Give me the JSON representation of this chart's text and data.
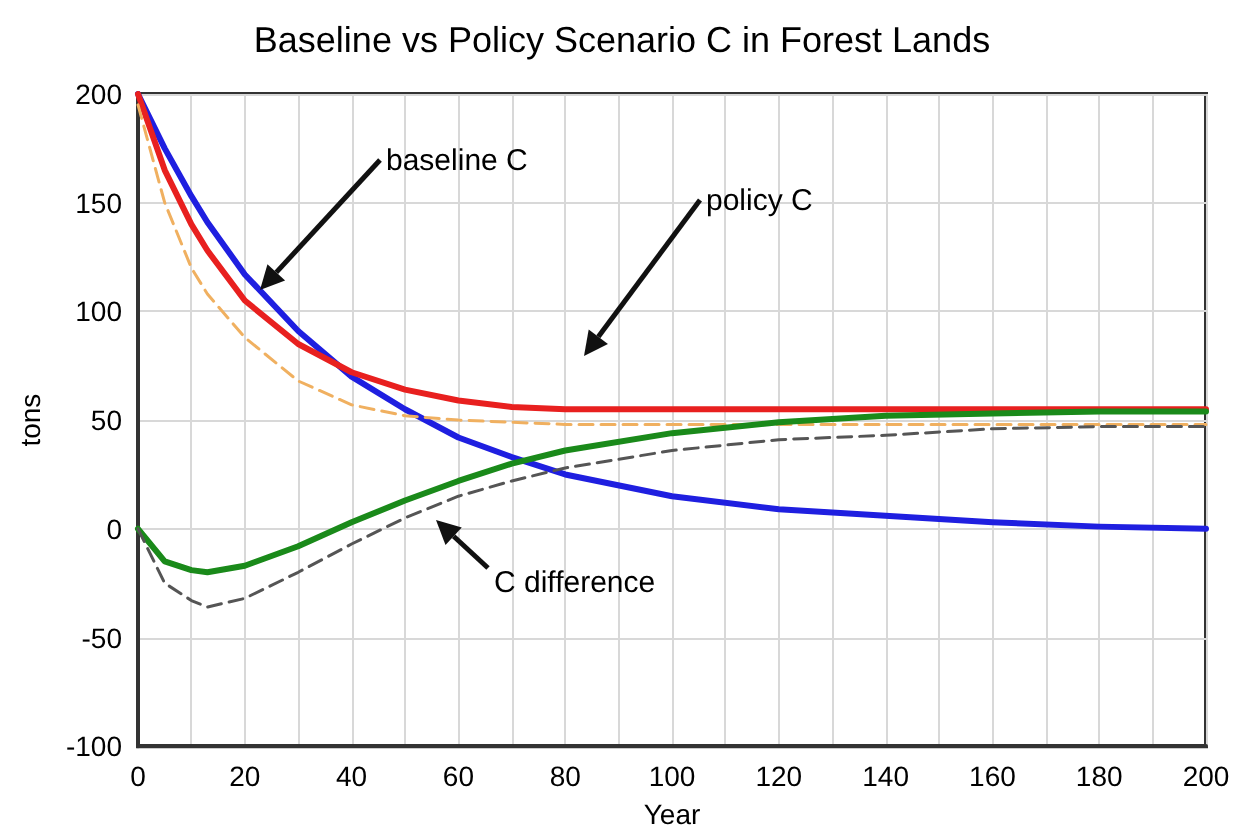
{
  "chart_data": {
    "type": "line",
    "title": "Baseline vs Policy Scenario C in Forest Lands",
    "xlabel": "Year",
    "ylabel": "tons",
    "x": [
      0,
      5,
      10,
      13,
      20,
      30,
      40,
      50,
      60,
      70,
      80,
      100,
      120,
      140,
      160,
      180,
      200
    ],
    "series": [
      {
        "color": "#1f1fe0",
        "values": [
          200,
          175,
          153,
          141,
          117,
          91,
          70,
          55,
          42,
          33,
          25,
          15,
          9,
          6,
          3,
          1,
          0
        ]
      },
      {
        "color": "#e8201f",
        "values": [
          200,
          165,
          140,
          128,
          105,
          85,
          72,
          64,
          59,
          56,
          55,
          55,
          55,
          55,
          55,
          55,
          55
        ]
      },
      {
        "color": "#f0b060",
        "line_style": "dashed",
        "values": [
          195,
          150,
          120,
          108,
          88,
          68,
          57,
          52,
          50,
          49,
          48,
          48,
          48,
          48,
          48,
          48,
          48
        ]
      },
      {
        "color": "#1a8a1a",
        "values": [
          0,
          -15,
          -19,
          -20,
          -17,
          -8,
          3,
          13,
          22,
          30,
          36,
          44,
          49,
          52,
          53,
          54,
          54
        ]
      },
      {
        "color": "#555555",
        "line_style": "dashed",
        "values": [
          0,
          -25,
          -33,
          -36,
          -32,
          -20,
          -7,
          5,
          15,
          22,
          28,
          36,
          41,
          43,
          46,
          47,
          47
        ]
      }
    ],
    "annotations": [
      "baseline C",
      "policy C",
      "C difference"
    ],
    "xlim": [
      0,
      200
    ],
    "xticks": [
      0,
      {
        "value": 10,
        "label": null
      },
      20,
      {
        "value": 30,
        "label": null
      },
      40,
      {
        "value": 50,
        "label": null
      },
      60,
      {
        "value": 70,
        "label": null
      },
      80,
      {
        "value": 90,
        "label": null
      },
      100,
      {
        "value": 110,
        "label": null
      },
      120,
      {
        "value": 130,
        "label": null
      },
      140,
      {
        "value": 150,
        "label": null
      },
      160,
      {
        "value": 170,
        "label": null
      },
      180,
      {
        "value": 190,
        "label": null
      },
      200
    ],
    "ylim": [
      -100,
      200
    ],
    "yticks": [
      -100,
      -50,
      0,
      50,
      100,
      150,
      200
    ],
    "grid": true,
    "marker": "none",
    "line_style": "solid"
  }
}
